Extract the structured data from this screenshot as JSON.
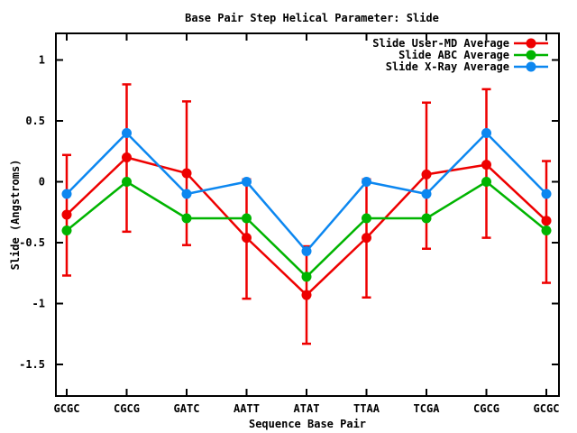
{
  "chart_data": {
    "type": "line",
    "title": "Base Pair Step Helical Parameter: Slide",
    "xlabel": "Sequence Base Pair",
    "ylabel": "Slide (Angstroms)",
    "categories": [
      "GCGC",
      "CGCG",
      "GATC",
      "AATT",
      "ATAT",
      "TTAA",
      "TCGA",
      "CGCG",
      "GCGC"
    ],
    "ytick_values": [
      1,
      0.5,
      0,
      -0.5,
      -1,
      -1.5
    ],
    "ytick_labels": [
      "1",
      "0.5",
      "0",
      "-0.5",
      "-1",
      "-1.5"
    ],
    "ylim": [
      -1.76,
      1.22
    ],
    "grid": false,
    "legend_position": "top-right-inside",
    "series": [
      {
        "name": "Slide User-MD Average",
        "color": "#ee0000",
        "marker": "filled-circle",
        "values": [
          -0.27,
          0.2,
          0.07,
          -0.46,
          -0.93,
          -0.46,
          0.06,
          0.14,
          -0.32
        ],
        "error_high": [
          0.22,
          0.8,
          0.66,
          0.02,
          -0.53,
          0.02,
          0.65,
          0.76,
          0.17
        ],
        "error_low": [
          -0.77,
          -0.41,
          -0.52,
          -0.96,
          -1.33,
          -0.95,
          -0.55,
          -0.46,
          -0.83
        ]
      },
      {
        "name": "Slide ABC Average",
        "color": "#00b400",
        "marker": "filled-circle",
        "values": [
          -0.4,
          0.0,
          -0.3,
          -0.3,
          -0.78,
          -0.3,
          -0.3,
          0.0,
          -0.4
        ]
      },
      {
        "name": "Slide X-Ray Average",
        "color": "#0c87f0",
        "marker": "filled-circle",
        "values": [
          -0.1,
          0.4,
          -0.1,
          0.0,
          -0.57,
          0.0,
          -0.1,
          0.4,
          -0.1
        ]
      }
    ],
    "axis_color": "#000000"
  }
}
